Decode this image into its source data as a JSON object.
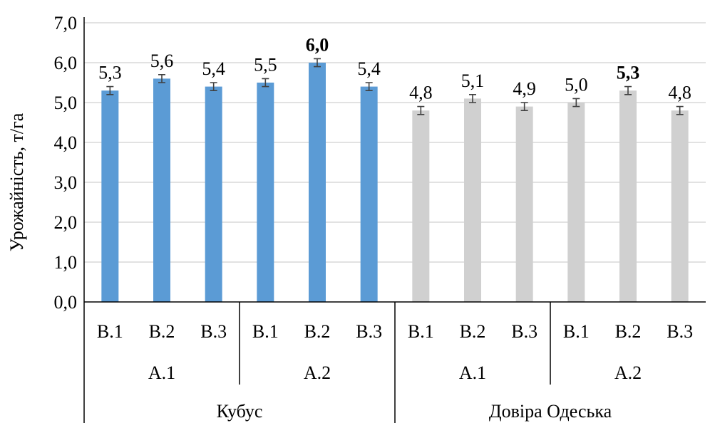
{
  "chart_data": {
    "type": "bar",
    "ylabel": "Урожайність, т/га",
    "ylim": [
      0,
      7
    ],
    "y_ticks": [
      "0,0",
      "1,0",
      "2,0",
      "3,0",
      "4,0",
      "5,0",
      "6,0",
      "7,0"
    ],
    "y_tick_values": [
      0,
      1,
      2,
      3,
      4,
      5,
      6,
      7
    ],
    "grid": true,
    "legend": "none",
    "colors": {
      "Кубус": "#5b9bd5",
      "Довіра Одеська": "#d0d0d0"
    },
    "variety_groups": [
      {
        "label": "Кубус",
        "color": "#5b9bd5",
        "subgroups": [
          {
            "label": "А.1",
            "categories": [
              "В.1",
              "В.2",
              "В.3"
            ],
            "values": [
              5.3,
              5.6,
              5.4
            ],
            "value_labels": [
              "5,3",
              "5,6",
              "5,4"
            ],
            "bold": [
              false,
              false,
              false
            ]
          },
          {
            "label": "А.2",
            "categories": [
              "В.1",
              "В.2",
              "В.3"
            ],
            "values": [
              5.5,
              6.0,
              5.4
            ],
            "value_labels": [
              "5,5",
              "6,0",
              "5,4"
            ],
            "bold": [
              false,
              true,
              false
            ]
          }
        ]
      },
      {
        "label": "Довіра Одеська",
        "color": "#d0d0d0",
        "subgroups": [
          {
            "label": "А.1",
            "categories": [
              "В.1",
              "В.2",
              "В.3"
            ],
            "values": [
              4.8,
              5.1,
              4.9
            ],
            "value_labels": [
              "4,8",
              "5,1",
              "4,9"
            ],
            "bold": [
              false,
              false,
              false
            ]
          },
          {
            "label": "А.2",
            "categories": [
              "В.1",
              "В.2",
              "В.3"
            ],
            "values": [
              5.0,
              5.3,
              4.8
            ],
            "value_labels": [
              "5,0",
              "5,3",
              "4,8"
            ],
            "bold": [
              false,
              true,
              false
            ]
          }
        ]
      }
    ],
    "error_bar": 0.1
  }
}
